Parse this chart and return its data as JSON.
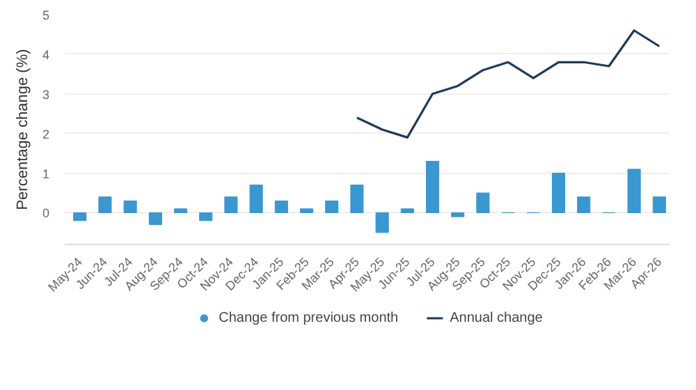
{
  "chart_data": {
    "type": "bar",
    "categories": [
      "May-24",
      "Jun-24",
      "Jul-24",
      "Aug-24",
      "Sep-24",
      "Oct-24",
      "Nov-24",
      "Dec-24",
      "Jan-25",
      "Feb-25",
      "Mar-25",
      "Apr-25",
      "May-25",
      "Jun-25",
      "Jul-25",
      "Aug-25",
      "Sep-25",
      "Oct-25",
      "Nov-25",
      "Dec-25",
      "Jan-26",
      "Feb-26",
      "Mar-26",
      "Apr-26"
    ],
    "series": [
      {
        "name": "Change from previous month",
        "color": "#3a97cf",
        "values": [
          -0.2,
          0.4,
          0.3,
          -0.3,
          0.1,
          -0.2,
          0.4,
          0.7,
          0.3,
          0.1,
          0.3,
          0.7,
          -0.5,
          0.1,
          1.3,
          -0.1,
          0.5,
          0,
          0,
          1.0,
          0.4,
          0,
          1.1,
          0.4
        ]
      },
      {
        "name": "Annual change",
        "type": "line",
        "color": "#1f3a5a",
        "values": [
          null,
          null,
          null,
          null,
          null,
          null,
          null,
          null,
          null,
          null,
          null,
          2.4,
          2.1,
          1.9,
          3.0,
          3.2,
          3.6,
          3.8,
          3.4,
          3.8,
          3.8,
          3.7,
          4.6,
          4.2
        ]
      }
    ],
    "ylabel": "Percentage change (%)",
    "ylim": [
      -0.8,
      5
    ],
    "yticks": [
      0,
      1,
      2,
      3,
      4,
      5
    ],
    "grid": "y",
    "legend": "bottom"
  }
}
